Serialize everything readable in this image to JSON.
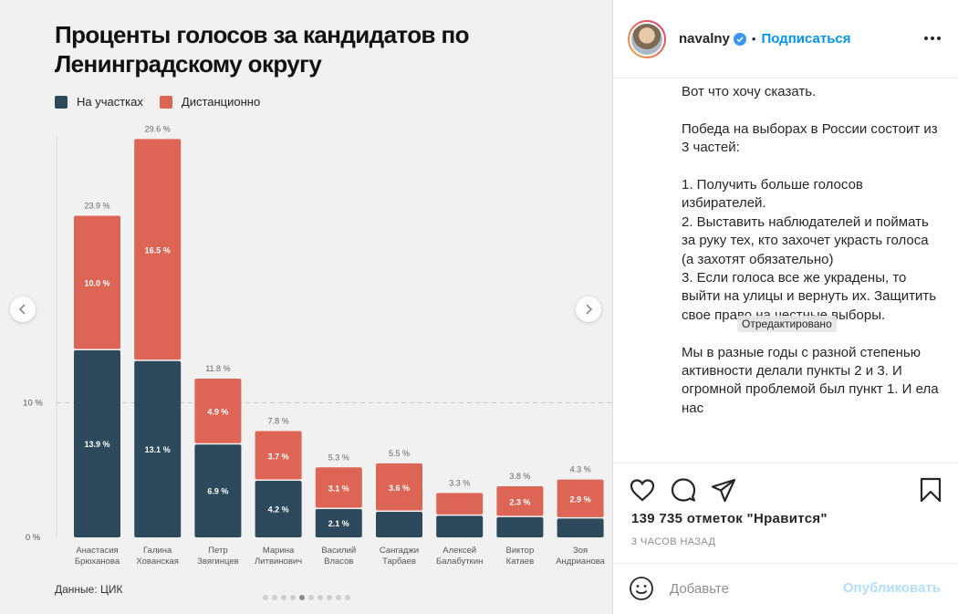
{
  "post_image": {
    "chart_title": "Проценты голосов за кандидатов по Ленинградскому округу",
    "source": "Данные: ЦИК",
    "carousel_dots": 10,
    "active_dot": 4
  },
  "chart_data": {
    "type": "bar",
    "stacked": true,
    "title": "Проценты голосов за кандидатов по Ленинградскому округу",
    "categories": [
      "Анастасия\nБрюханова",
      "Галина\nХованская",
      "Петр\nЗвягинцев",
      "Марина\nЛитвинович",
      "Василий\nВласов",
      "Сангаджи\nТарбаев",
      "Алексей\nБалабуткин",
      "Виктор\nКатаев",
      "Зоя\nАндрианова"
    ],
    "series": [
      {
        "name": "На участках",
        "color": "#2c4a5b",
        "values": [
          13.9,
          13.1,
          6.9,
          4.2,
          2.1,
          1.9,
          1.6,
          1.5,
          1.4
        ],
        "labels": [
          "13.9 %",
          "13.1 %",
          "6.9 %",
          "4.2 %",
          "2.1 %",
          "",
          "",
          "",
          ""
        ]
      },
      {
        "name": "Дистанционно",
        "color": "#dd6555",
        "values": [
          10.0,
          16.5,
          4.9,
          3.7,
          3.1,
          3.6,
          1.7,
          2.3,
          2.9
        ],
        "labels": [
          "10.0 %",
          "16.5 %",
          "4.9 %",
          "3.7 %",
          "3.1 %",
          "3.6 %",
          "",
          "2.3 %",
          "2.9 %"
        ]
      }
    ],
    "totals": [
      "23.9 %",
      "29.6 %",
      "11.8 %",
      "7.8 %",
      "5.3 %",
      "5.5 %",
      "3.3 %",
      "3.8 %",
      "4.3 %"
    ],
    "yticks": [
      {
        "value": 0,
        "label": "0 %"
      },
      {
        "value": 10,
        "label": "10 %"
      }
    ],
    "ylim": [
      0,
      30
    ],
    "legend": "top-left",
    "grid": false
  },
  "sidebar": {
    "username": "navalny",
    "separator": "•",
    "follow_label": "Подписаться",
    "caption": [
      "Вот что хочу сказать.",
      "Победа на выборах в России состоит из 3 частей:",
      "1. Получить больше голосов избирателей.\n2. Выставить наблюдателей и поймать за руку тех, кто захочет украсть голоса (а захотят обязательно)\n3. Если голоса все же украдены, то выйти на улицы и вернуть их. Защитить свое право на честные выборы.",
      "Мы в разные годы с разной степенью активности делали пункты 2 и 3. И огромной проблемой был пункт 1. И ела нас"
    ],
    "edited_tooltip": "Отредактировано",
    "likes": "139 735 отметок \"Нравится\"",
    "time_ago": "3 ЧАСОВ НАЗАД",
    "comment_placeholder": "Добавьте",
    "publish_label": "Опубликовать"
  },
  "colors": {
    "accent": "#0095f6",
    "publish_disabled": "#b2dffc",
    "bar_dark": "#2c4a5b",
    "bar_red": "#dd6555"
  }
}
